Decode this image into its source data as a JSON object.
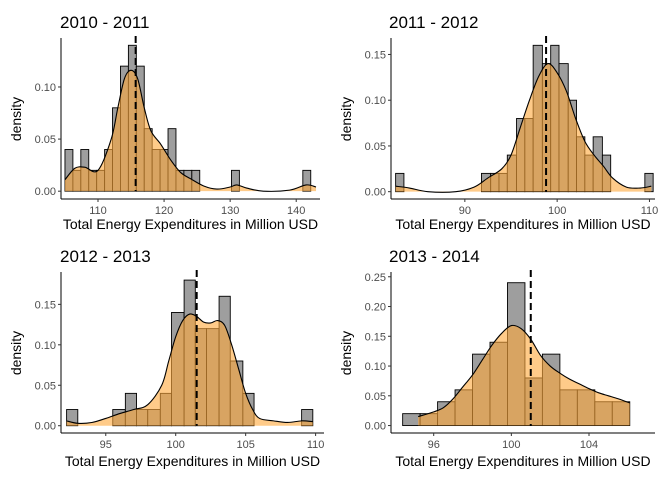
{
  "colors": {
    "hist_fill": "#9e9e9e",
    "density_fill": "#ffa93a",
    "outline": "#000000",
    "mean_line": "#000000"
  },
  "chart_data": [
    {
      "type": "histogram",
      "title": "2010 - 2011",
      "xlabel": "Total Energy Expenditures in Million USD",
      "ylabel": "density",
      "xlim": [
        104.4,
        143.6
      ],
      "ylim": [
        -0.0075,
        0.147
      ],
      "xticks": [
        110,
        120,
        130,
        140
      ],
      "yticks": [
        0.0,
        0.05,
        0.1
      ],
      "ytick_labels": [
        "0.00",
        "0.05",
        "0.10"
      ],
      "mean": 115.7,
      "bins": [
        {
          "x0": 105.0,
          "x1": 106.2,
          "density": 0.04
        },
        {
          "x0": 106.2,
          "x1": 107.4,
          "density": 0.02
        },
        {
          "x0": 107.4,
          "x1": 108.6,
          "density": 0.04
        },
        {
          "x0": 108.6,
          "x1": 109.8,
          "density": 0.02
        },
        {
          "x0": 109.8,
          "x1": 111.0,
          "density": 0.02
        },
        {
          "x0": 111.0,
          "x1": 112.2,
          "density": 0.04
        },
        {
          "x0": 112.2,
          "x1": 113.4,
          "density": 0.08
        },
        {
          "x0": 113.4,
          "x1": 114.6,
          "density": 0.12
        },
        {
          "x0": 114.6,
          "x1": 115.8,
          "density": 0.14
        },
        {
          "x0": 115.8,
          "x1": 117.0,
          "density": 0.12
        },
        {
          "x0": 117.0,
          "x1": 118.2,
          "density": 0.06
        },
        {
          "x0": 118.2,
          "x1": 119.4,
          "density": 0.04
        },
        {
          "x0": 119.4,
          "x1": 120.6,
          "density": 0.04
        },
        {
          "x0": 120.6,
          "x1": 121.8,
          "density": 0.06
        },
        {
          "x0": 121.8,
          "x1": 123.0,
          "density": 0.02
        },
        {
          "x0": 123.0,
          "x1": 124.2,
          "density": 0.02
        },
        {
          "x0": 124.2,
          "x1": 125.4,
          "density": 0.02
        },
        {
          "x0": 130.2,
          "x1": 131.4,
          "density": 0.02
        },
        {
          "x0": 141.0,
          "x1": 142.2,
          "density": 0.02
        }
      ],
      "density_curve": [
        [
          105.0,
          0.011
        ],
        [
          106.5,
          0.022
        ],
        [
          108.0,
          0.023
        ],
        [
          110.0,
          0.02
        ],
        [
          112.0,
          0.05
        ],
        [
          113.0,
          0.08
        ],
        [
          114.0,
          0.108
        ],
        [
          115.0,
          0.116
        ],
        [
          116.0,
          0.108
        ],
        [
          117.0,
          0.08
        ],
        [
          118.0,
          0.058
        ],
        [
          119.5,
          0.045
        ],
        [
          121.0,
          0.03
        ],
        [
          122.5,
          0.018
        ],
        [
          124.0,
          0.012
        ],
        [
          126.0,
          0.005
        ],
        [
          128.0,
          0.002
        ],
        [
          130.0,
          0.004
        ],
        [
          131.0,
          0.006
        ],
        [
          132.5,
          0.003
        ],
        [
          135.0,
          0.0
        ],
        [
          139.0,
          0.001
        ],
        [
          141.5,
          0.006
        ],
        [
          143.0,
          0.004
        ]
      ]
    },
    {
      "type": "histogram",
      "title": "2011 - 2012",
      "xlabel": "Total Energy Expenditures in Million USD",
      "ylabel": "density",
      "xlim": [
        82.0,
        110.6
      ],
      "ylim": [
        -0.008,
        0.168
      ],
      "xticks": [
        90,
        100,
        110
      ],
      "yticks": [
        0.0,
        0.05,
        0.1,
        0.15
      ],
      "ytick_labels": [
        "0.00",
        "0.05",
        "0.10",
        "0.15"
      ],
      "mean": 98.8,
      "bins": [
        {
          "x0": 82.5,
          "x1": 83.4,
          "density": 0.02
        },
        {
          "x0": 83.4,
          "x1": 84.4,
          "density": 0.0
        },
        {
          "x0": 91.8,
          "x1": 92.8,
          "density": 0.02
        },
        {
          "x0": 92.8,
          "x1": 93.7,
          "density": 0.02
        },
        {
          "x0": 93.7,
          "x1": 94.6,
          "density": 0.02
        },
        {
          "x0": 94.6,
          "x1": 95.6,
          "density": 0.04
        },
        {
          "x0": 95.6,
          "x1": 96.5,
          "density": 0.08
        },
        {
          "x0": 96.5,
          "x1": 97.4,
          "density": 0.08
        },
        {
          "x0": 97.4,
          "x1": 98.4,
          "density": 0.16
        },
        {
          "x0": 98.4,
          "x1": 99.3,
          "density": 0.14
        },
        {
          "x0": 99.3,
          "x1": 100.2,
          "density": 0.16
        },
        {
          "x0": 100.2,
          "x1": 101.2,
          "density": 0.14
        },
        {
          "x0": 101.2,
          "x1": 102.1,
          "density": 0.1
        },
        {
          "x0": 102.1,
          "x1": 103.0,
          "density": 0.06
        },
        {
          "x0": 103.0,
          "x1": 103.9,
          "density": 0.04
        },
        {
          "x0": 103.9,
          "x1": 104.9,
          "density": 0.06
        },
        {
          "x0": 104.9,
          "x1": 105.8,
          "density": 0.04
        },
        {
          "x0": 109.5,
          "x1": 110.4,
          "density": 0.02
        }
      ],
      "density_curve": [
        [
          82.5,
          0.006
        ],
        [
          84.0,
          0.004
        ],
        [
          86.0,
          0.0
        ],
        [
          89.0,
          0.0
        ],
        [
          91.0,
          0.005
        ],
        [
          92.5,
          0.015
        ],
        [
          94.0,
          0.025
        ],
        [
          95.0,
          0.04
        ],
        [
          96.0,
          0.07
        ],
        [
          97.0,
          0.1
        ],
        [
          98.0,
          0.126
        ],
        [
          99.0,
          0.14
        ],
        [
          100.0,
          0.13
        ],
        [
          101.0,
          0.11
        ],
        [
          102.0,
          0.08
        ],
        [
          103.0,
          0.055
        ],
        [
          104.0,
          0.04
        ],
        [
          105.0,
          0.028
        ],
        [
          106.0,
          0.015
        ],
        [
          107.5,
          0.005
        ],
        [
          109.0,
          0.004
        ],
        [
          110.2,
          0.006
        ]
      ]
    },
    {
      "type": "histogram",
      "title": "2012 - 2013",
      "xlabel": "Total Energy Expenditures in Million USD",
      "ylabel": "density",
      "xlim": [
        91.8,
        110.6
      ],
      "ylim": [
        -0.009,
        0.19
      ],
      "xticks": [
        95,
        100,
        105,
        110
      ],
      "yticks": [
        0.0,
        0.05,
        0.1,
        0.15
      ],
      "ytick_labels": [
        "0.00",
        "0.05",
        "0.10",
        "0.15"
      ],
      "mean": 101.5,
      "bins": [
        {
          "x0": 92.2,
          "x1": 93.0,
          "density": 0.02
        },
        {
          "x0": 95.5,
          "x1": 96.4,
          "density": 0.02
        },
        {
          "x0": 96.4,
          "x1": 97.2,
          "density": 0.04
        },
        {
          "x0": 97.2,
          "x1": 98.0,
          "density": 0.02
        },
        {
          "x0": 98.0,
          "x1": 98.9,
          "density": 0.02
        },
        {
          "x0": 98.9,
          "x1": 99.7,
          "density": 0.04
        },
        {
          "x0": 99.7,
          "x1": 100.6,
          "density": 0.14
        },
        {
          "x0": 100.6,
          "x1": 101.4,
          "density": 0.18
        },
        {
          "x0": 101.4,
          "x1": 102.2,
          "density": 0.12
        },
        {
          "x0": 102.2,
          "x1": 103.1,
          "density": 0.12
        },
        {
          "x0": 103.1,
          "x1": 103.9,
          "density": 0.16
        },
        {
          "x0": 103.9,
          "x1": 104.8,
          "density": 0.08
        },
        {
          "x0": 104.8,
          "x1": 105.6,
          "density": 0.04
        },
        {
          "x0": 109.0,
          "x1": 109.8,
          "density": 0.02
        }
      ],
      "density_curve": [
        [
          92.2,
          0.006
        ],
        [
          93.0,
          0.003
        ],
        [
          94.0,
          0.004
        ],
        [
          95.0,
          0.009
        ],
        [
          96.0,
          0.015
        ],
        [
          97.0,
          0.02
        ],
        [
          98.0,
          0.026
        ],
        [
          99.0,
          0.05
        ],
        [
          99.5,
          0.08
        ],
        [
          100.0,
          0.11
        ],
        [
          100.5,
          0.13
        ],
        [
          101.0,
          0.138
        ],
        [
          101.5,
          0.135
        ],
        [
          102.0,
          0.128
        ],
        [
          102.5,
          0.127
        ],
        [
          103.0,
          0.13
        ],
        [
          103.5,
          0.124
        ],
        [
          104.0,
          0.1
        ],
        [
          104.5,
          0.07
        ],
        [
          105.0,
          0.04
        ],
        [
          105.5,
          0.02
        ],
        [
          106.0,
          0.009
        ],
        [
          107.0,
          0.006
        ],
        [
          108.0,
          0.004
        ],
        [
          109.0,
          0.006
        ],
        [
          109.8,
          0.005
        ]
      ]
    },
    {
      "type": "histogram",
      "title": "2013 - 2014",
      "xlabel": "Total Energy Expenditures in Million USD",
      "ylabel": "density",
      "xlim": [
        93.8,
        107.4
      ],
      "ylim": [
        -0.0125,
        0.258
      ],
      "xticks": [
        96,
        100,
        104
      ],
      "yticks": [
        0.0,
        0.05,
        0.1,
        0.15,
        0.2,
        0.25
      ],
      "ytick_labels": [
        "0.00",
        "0.05",
        "0.10",
        "0.15",
        "0.20",
        "0.25"
      ],
      "mean": 101.0,
      "bins": [
        {
          "x0": 94.4,
          "x1": 95.3,
          "density": 0.02
        },
        {
          "x0": 95.3,
          "x1": 96.2,
          "density": 0.02
        },
        {
          "x0": 96.2,
          "x1": 97.1,
          "density": 0.04
        },
        {
          "x0": 97.1,
          "x1": 98.0,
          "density": 0.06
        },
        {
          "x0": 98.0,
          "x1": 98.9,
          "density": 0.12
        },
        {
          "x0": 98.9,
          "x1": 99.8,
          "density": 0.14
        },
        {
          "x0": 99.8,
          "x1": 100.7,
          "density": 0.24
        },
        {
          "x0": 100.7,
          "x1": 101.6,
          "density": 0.08
        },
        {
          "x0": 101.6,
          "x1": 102.5,
          "density": 0.12
        },
        {
          "x0": 102.5,
          "x1": 103.4,
          "density": 0.06
        },
        {
          "x0": 103.4,
          "x1": 104.3,
          "density": 0.06
        },
        {
          "x0": 104.3,
          "x1": 105.2,
          "density": 0.04
        },
        {
          "x0": 105.2,
          "x1": 106.1,
          "density": 0.04
        }
      ],
      "density_curve": [
        [
          95.2,
          0.015
        ],
        [
          96.0,
          0.023
        ],
        [
          96.5,
          0.03
        ],
        [
          97.0,
          0.045
        ],
        [
          97.5,
          0.065
        ],
        [
          98.0,
          0.085
        ],
        [
          98.5,
          0.11
        ],
        [
          99.0,
          0.135
        ],
        [
          99.5,
          0.155
        ],
        [
          100.0,
          0.168
        ],
        [
          100.5,
          0.163
        ],
        [
          101.0,
          0.145
        ],
        [
          101.5,
          0.118
        ],
        [
          102.0,
          0.1
        ],
        [
          102.5,
          0.088
        ],
        [
          103.0,
          0.078
        ],
        [
          103.5,
          0.07
        ],
        [
          104.0,
          0.062
        ],
        [
          104.5,
          0.055
        ],
        [
          105.0,
          0.05
        ],
        [
          105.5,
          0.045
        ],
        [
          106.1,
          0.038
        ]
      ]
    }
  ]
}
